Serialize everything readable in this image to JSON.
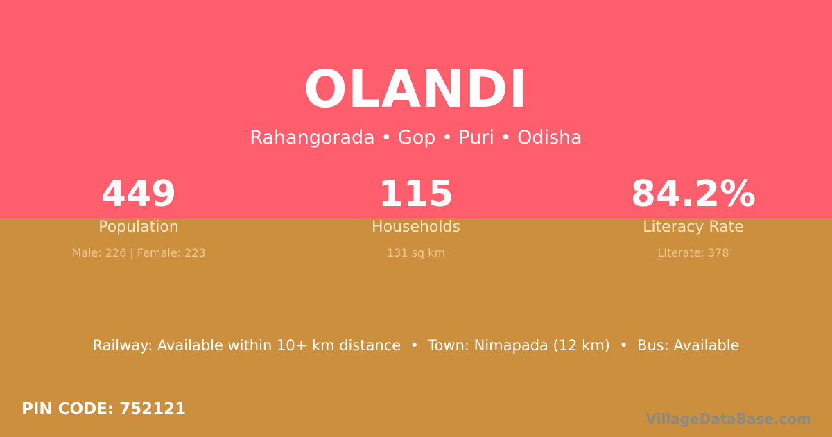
{
  "colors": {
    "top_background": "#ff5f6d",
    "bottom_background": "#cb8f3e"
  },
  "village": {
    "name": "OLANDI",
    "location": "Rahangorada • Gop • Puri • Odisha"
  },
  "stats": [
    {
      "value": "449",
      "label": "Population",
      "sub": "Male: 226 | Female: 223"
    },
    {
      "value": "115",
      "label": "Households",
      "sub": "131 sq km"
    },
    {
      "value": "84.2%",
      "label": "Literacy Rate",
      "sub": "Literate: 378"
    }
  ],
  "connectivity": "Railway: Available within 10+ km distance  •  Town: Nimapada (12 km)  •  Bus: Available",
  "pin_code": "PIN CODE: 752121",
  "watermark": "VillageDataBase.com"
}
